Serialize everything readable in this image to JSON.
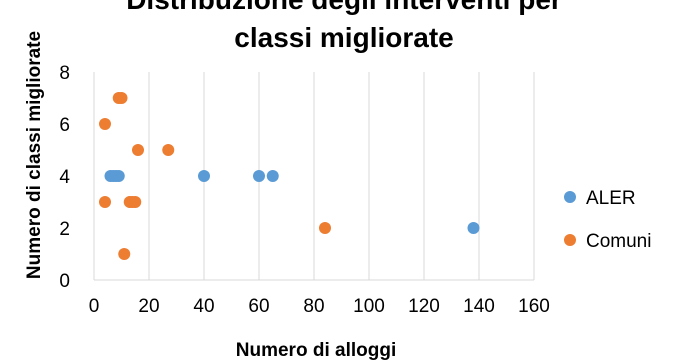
{
  "chart_data": {
    "type": "scatter",
    "title_lines": [
      "Distribuzione degli interventi per",
      "classi migliorate"
    ],
    "xlabel": "Numero di alloggi",
    "ylabel": "Numero di classi migliorate",
    "xlim": [
      0,
      160
    ],
    "ylim": [
      0,
      8
    ],
    "x_ticks": [
      0,
      20,
      40,
      60,
      80,
      100,
      120,
      140,
      160
    ],
    "y_ticks": [
      0,
      2,
      4,
      6,
      8
    ],
    "grid": "vertical",
    "legend_position": "right",
    "series": [
      {
        "name": "ALER",
        "color": "#5b9bd5",
        "points": [
          {
            "x": 6,
            "y": 4
          },
          {
            "x": 7,
            "y": 4
          },
          {
            "x": 8,
            "y": 4
          },
          {
            "x": 9,
            "y": 4
          },
          {
            "x": 40,
            "y": 4
          },
          {
            "x": 60,
            "y": 4
          },
          {
            "x": 65,
            "y": 4
          },
          {
            "x": 138,
            "y": 2
          }
        ]
      },
      {
        "name": "Comuni",
        "color": "#ed7d31",
        "points": [
          {
            "x": 4,
            "y": 6
          },
          {
            "x": 4,
            "y": 3
          },
          {
            "x": 9,
            "y": 7
          },
          {
            "x": 10,
            "y": 7
          },
          {
            "x": 11,
            "y": 1
          },
          {
            "x": 13,
            "y": 3
          },
          {
            "x": 14,
            "y": 3
          },
          {
            "x": 15,
            "y": 3
          },
          {
            "x": 16,
            "y": 5
          },
          {
            "x": 27,
            "y": 5
          },
          {
            "x": 84,
            "y": 2
          }
        ]
      }
    ]
  }
}
